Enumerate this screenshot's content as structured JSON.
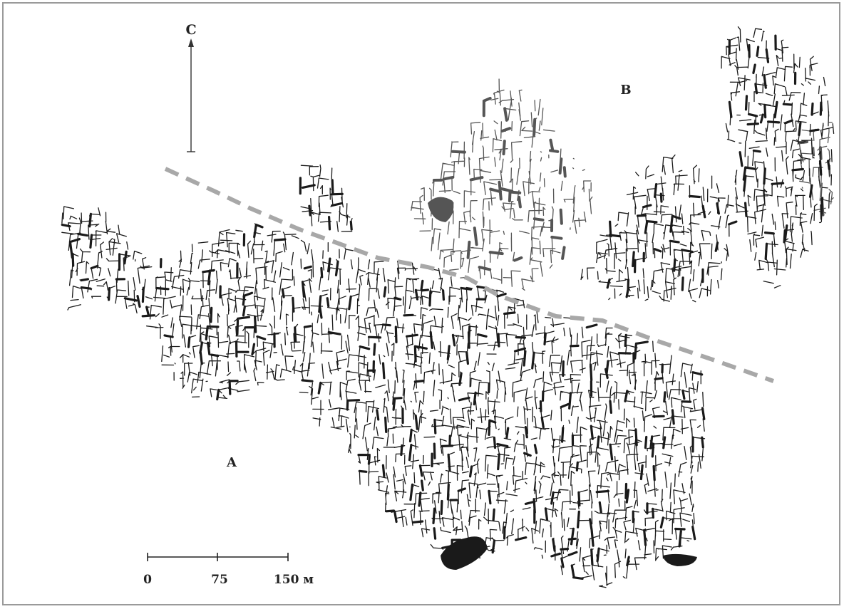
{
  "map": {
    "north_label": "C",
    "zone_labels": {
      "a": "A",
      "b": "B"
    },
    "scale_bar": {
      "ticks": [
        "0",
        "75",
        "150 м"
      ]
    },
    "colors": {
      "passages_main": "#1a1a1a",
      "passages_upper": "#555555",
      "boundary_line": "#a8a8a8",
      "frame": "#9a9a9a"
    },
    "boundary_style": "dashed"
  }
}
